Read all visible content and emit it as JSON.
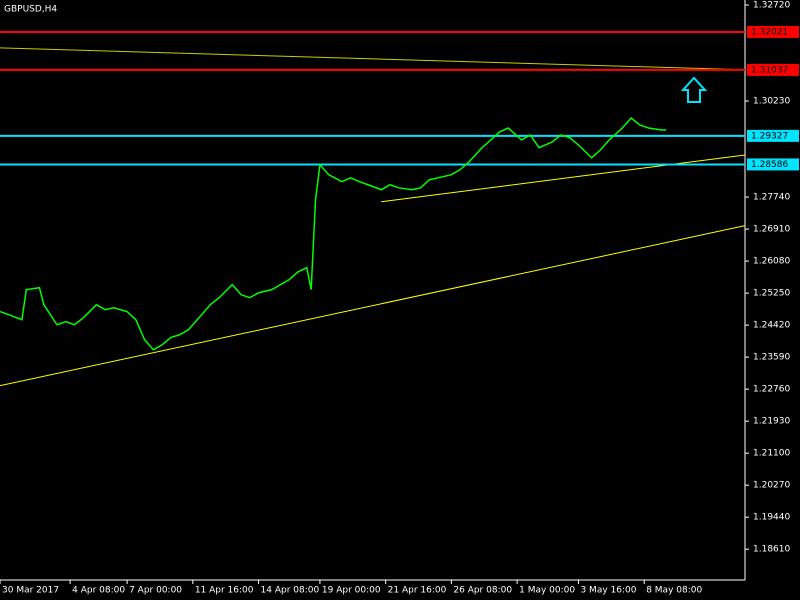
{
  "chart_data": {
    "type": "line",
    "title": "GBPUSD,H4",
    "xlim": [
      0,
      170
    ],
    "ylim": [
      1.1833,
      1.3285
    ],
    "xticks": [
      {
        "value": 0,
        "label": "30 Mar 2017"
      },
      {
        "value": 16,
        "label": "4 Apr 08:00"
      },
      {
        "value": 29,
        "label": "7 Apr 00:00"
      },
      {
        "value": 44,
        "label": "11 Apr 16:00"
      },
      {
        "value": 59,
        "label": "14 Apr 08:00"
      },
      {
        "value": 73,
        "label": "19 Apr 00:00"
      },
      {
        "value": 88,
        "label": "21 Apr 16:00"
      },
      {
        "value": 103,
        "label": "26 Apr 08:00"
      },
      {
        "value": 118,
        "label": "1 May 00:00"
      },
      {
        "value": 132,
        "label": "3 May 16:00"
      },
      {
        "value": 147,
        "label": "8 May 08:00"
      }
    ],
    "yticks": [
      {
        "value": 1.3272,
        "label": "1.32720"
      },
      {
        "value": 1.3023,
        "label": "1.30230"
      },
      {
        "value": 1.2774,
        "label": "1.27740"
      },
      {
        "value": 1.2691,
        "label": "1.26910"
      },
      {
        "value": 1.2608,
        "label": "1.26080"
      },
      {
        "value": 1.2525,
        "label": "1.25250"
      },
      {
        "value": 1.2442,
        "label": "1.24420"
      },
      {
        "value": 1.2359,
        "label": "1.23590"
      },
      {
        "value": 1.2276,
        "label": "1.22760"
      },
      {
        "value": 1.2193,
        "label": "1.21930"
      },
      {
        "value": 1.211,
        "label": "1.21100"
      },
      {
        "value": 1.2027,
        "label": "1.20270"
      },
      {
        "value": 1.1944,
        "label": "1.19440"
      },
      {
        "value": 1.1861,
        "label": "1.18610"
      }
    ],
    "series": [
      {
        "name": "GBPUSD",
        "color": "#00ff00",
        "x": [
          0,
          2,
          5,
          6,
          9,
          10,
          13,
          15,
          17,
          19,
          22,
          24,
          26,
          29,
          31,
          33,
          35,
          37,
          39,
          41,
          43,
          46,
          48,
          50,
          53,
          55,
          57,
          59,
          62,
          64,
          66,
          68,
          70,
          71,
          72,
          73,
          75,
          78,
          80,
          82,
          84,
          87,
          89,
          91,
          94,
          96,
          98,
          100,
          103,
          105,
          107,
          110,
          112,
          114,
          116,
          119,
          121,
          123,
          126,
          128,
          130,
          132,
          135,
          137,
          139,
          142,
          144,
          146,
          148,
          151,
          152
        ],
        "values": [
          1.2477,
          1.2469,
          1.2456,
          1.2534,
          1.2539,
          1.2495,
          1.2443,
          1.2451,
          1.2443,
          1.2461,
          1.2495,
          1.2482,
          1.2487,
          1.2477,
          1.2456,
          1.2404,
          1.2378,
          1.2391,
          1.241,
          1.2417,
          1.243,
          1.2469,
          1.2495,
          1.2513,
          1.2547,
          1.2521,
          1.2513,
          1.2526,
          1.2534,
          1.2547,
          1.256,
          1.258,
          1.2591,
          1.2534,
          1.2767,
          1.2858,
          1.2832,
          1.2814,
          1.2824,
          1.2814,
          1.2806,
          1.2793,
          1.2806,
          1.2798,
          1.2793,
          1.2798,
          1.2819,
          1.2824,
          1.2832,
          1.2845,
          1.2865,
          1.2902,
          1.2922,
          1.2943,
          1.2953,
          1.2922,
          1.2935,
          1.2902,
          1.2917,
          1.2935,
          1.2928,
          1.2909,
          1.2876,
          1.2896,
          1.2922,
          1.2953,
          1.2979,
          1.2961,
          1.2953,
          1.2948,
          1.2948
        ]
      }
    ],
    "levels": [
      {
        "value": 1.32021,
        "color": "#ff0000"
      },
      {
        "value": 1.31037,
        "color": "#ff0000"
      },
      {
        "value": 1.29327,
        "color": "#00e5ff"
      },
      {
        "value": 1.28586,
        "color": "#00e5ff"
      }
    ],
    "trendlines": [
      {
        "x1": 0,
        "y1": 1.3161,
        "x2": 170,
        "y2": 1.3104,
        "color": "#cccc00"
      },
      {
        "x1": 87,
        "y1": 1.2762,
        "x2": 170,
        "y2": 1.2883,
        "color": "#ffff00"
      },
      {
        "x1": 0,
        "y1": 1.2285,
        "x2": 170,
        "y2": 1.27,
        "color": "#ffff00"
      }
    ]
  }
}
